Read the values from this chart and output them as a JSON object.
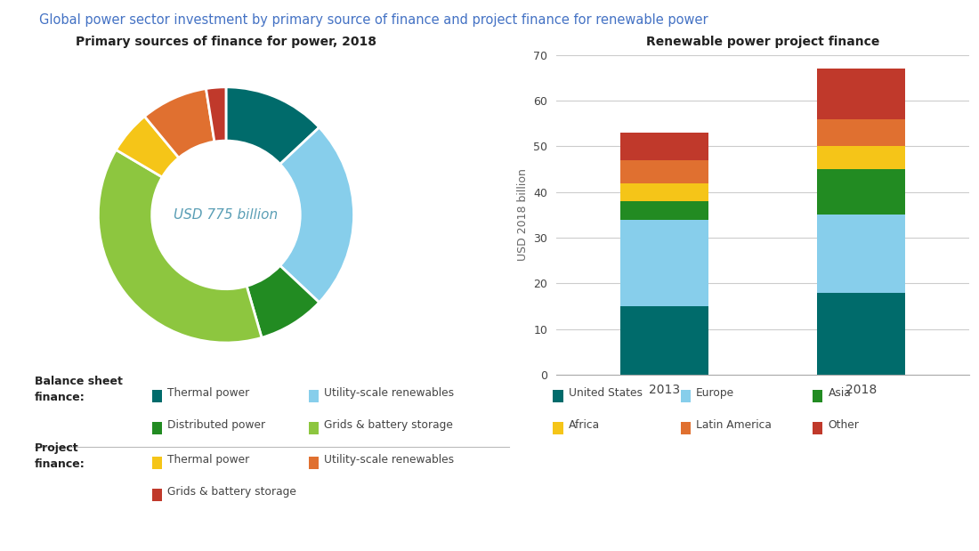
{
  "title": "Global power sector investment by primary source of finance and project finance for renewable power",
  "title_color": "#4472c4",
  "pie_title": "Primary sources of finance for power, 2018",
  "bar_title": "Renewable power project finance",
  "center_text": "USD 775 billion",
  "pie_slices": [
    {
      "label": "Thermal power (BS)",
      "value": 0.13,
      "color": "#006b6b"
    },
    {
      "label": "Utility-scale renewables (BS)",
      "value": 0.24,
      "color": "#87ceeb"
    },
    {
      "label": "Distributed power (BS)",
      "value": 0.085,
      "color": "#228B22"
    },
    {
      "label": "Grids & battery storage (BS)",
      "value": 0.38,
      "color": "#8dc63f"
    },
    {
      "label": "Thermal power (PF)",
      "value": 0.055,
      "color": "#f5c518"
    },
    {
      "label": "Utility-scale renewables (PF)",
      "value": 0.085,
      "color": "#e07030"
    },
    {
      "label": "Grids & battery storage (PF)",
      "value": 0.025,
      "color": "#c0392b"
    }
  ],
  "bar_categories": [
    "2013",
    "2018"
  ],
  "bar_series": [
    {
      "label": "United States",
      "color": "#006b6b",
      "values": [
        15,
        18
      ]
    },
    {
      "label": "Europe",
      "color": "#87ceeb",
      "values": [
        19,
        17
      ]
    },
    {
      "label": "Asia",
      "color": "#228B22",
      "values": [
        4,
        10
      ]
    },
    {
      "label": "Africa",
      "color": "#f5c518",
      "values": [
        4,
        5
      ]
    },
    {
      "label": "Latin America",
      "color": "#e07030",
      "values": [
        5,
        6
      ]
    },
    {
      "label": "Other",
      "color": "#c0392b",
      "values": [
        6,
        11
      ]
    }
  ],
  "bar_ylim": [
    0,
    70
  ],
  "bar_yticks": [
    0,
    10,
    20,
    30,
    40,
    50,
    60,
    70
  ],
  "bar_ylabel": "USD 2018 billion",
  "legend_balance_sheet": [
    {
      "label": "Thermal power",
      "color": "#006b6b"
    },
    {
      "label": "Utility-scale renewables",
      "color": "#87ceeb"
    },
    {
      "label": "Distributed power",
      "color": "#228B22"
    },
    {
      "label": "Grids & battery storage",
      "color": "#8dc63f"
    }
  ],
  "legend_project": [
    {
      "label": "Thermal power",
      "color": "#f5c518"
    },
    {
      "label": "Utility-scale renewables",
      "color": "#e07030"
    },
    {
      "label": "Grids & battery storage",
      "color": "#c0392b"
    }
  ],
  "legend_bar": [
    {
      "label": "United States",
      "color": "#006b6b"
    },
    {
      "label": "Europe",
      "color": "#87ceeb"
    },
    {
      "label": "Asia",
      "color": "#228B22"
    },
    {
      "label": "Africa",
      "color": "#f5c518"
    },
    {
      "label": "Latin America",
      "color": "#e07030"
    },
    {
      "label": "Other",
      "color": "#c0392b"
    }
  ]
}
